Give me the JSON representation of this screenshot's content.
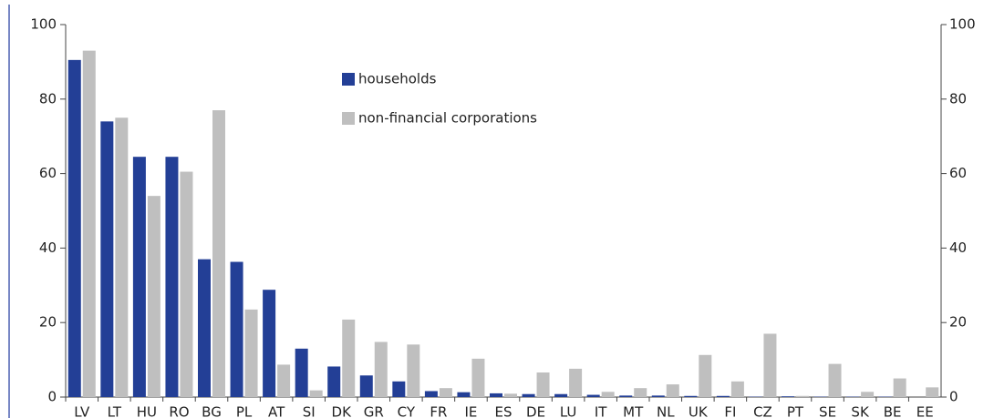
{
  "chart_data": {
    "type": "bar",
    "categories": [
      "LV",
      "LT",
      "HU",
      "RO",
      "BG",
      "PL",
      "AT",
      "SI",
      "DK",
      "GR",
      "CY",
      "FR",
      "IE",
      "ES",
      "DE",
      "LU",
      "IT",
      "MT",
      "NL",
      "UK",
      "FI",
      "CZ",
      "PT",
      "SE",
      "SK",
      "BE",
      "EE"
    ],
    "series": [
      {
        "name": "households",
        "color": "#233f96",
        "values": [
          90.5,
          74,
          64.5,
          64.5,
          37,
          36.3,
          28.8,
          13,
          8.2,
          5.8,
          4.2,
          1.6,
          1.3,
          1.0,
          0.8,
          0.8,
          0.6,
          0.4,
          0.4,
          0.3,
          0.3,
          0.1,
          0.2,
          0.1,
          0.1,
          0.1,
          0.0
        ]
      },
      {
        "name": "non-financial corporations",
        "color": "#bfbfbf",
        "values": [
          93,
          75,
          54,
          60.5,
          77,
          23.5,
          8.7,
          1.8,
          20.8,
          14.8,
          14.1,
          2.4,
          10.3,
          0.9,
          6.6,
          7.6,
          1.4,
          2.4,
          3.4,
          11.3,
          4.2,
          17,
          0.3,
          8.9,
          1.4,
          5,
          2.6
        ]
      }
    ],
    "ylim": [
      0,
      100
    ],
    "yticks": [
      0,
      20,
      40,
      60,
      80,
      100
    ],
    "y2lim": [
      0,
      100
    ],
    "y2ticks": [
      0,
      20,
      40,
      60,
      80,
      100
    ],
    "grid": false
  }
}
